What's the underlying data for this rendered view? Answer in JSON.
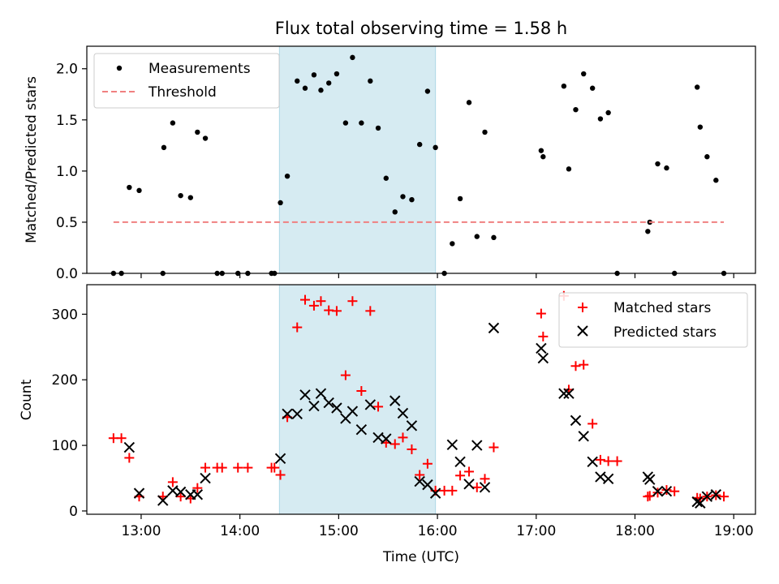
{
  "title": "Flux total observing time = 1.58 h",
  "chart_data": [
    {
      "type": "scatter",
      "ylabel": "Matched/Predicted stars",
      "xlim": [
        12.45,
        19.22
      ],
      "ylim": [
        0,
        2.22
      ],
      "yticks": [
        "0.0",
        "0.5",
        "1.0",
        "1.5",
        "2.0"
      ],
      "ytick_values": [
        0,
        0.5,
        1.0,
        1.5,
        2.0
      ],
      "grid": false,
      "legend": {
        "placement": "top-left",
        "entries": [
          "Measurements",
          "Threshold"
        ]
      },
      "colors": {
        "measurements": "#000000",
        "threshold": "#f08080",
        "highlight": "#add8e6"
      },
      "highlight_span": [
        14.4,
        15.98
      ],
      "series": [
        {
          "name": "Measurements",
          "marker": "dot",
          "points": [
            [
              12.72,
              0
            ],
            [
              12.8,
              0
            ],
            [
              12.88,
              0.84
            ],
            [
              12.98,
              0.81
            ],
            [
              13.22,
              0
            ],
            [
              13.23,
              1.23
            ],
            [
              13.32,
              1.47
            ],
            [
              13.4,
              0.76
            ],
            [
              13.5,
              0.74
            ],
            [
              13.57,
              1.38
            ],
            [
              13.65,
              1.32
            ],
            [
              13.77,
              0
            ],
            [
              13.82,
              0
            ],
            [
              13.98,
              0
            ],
            [
              14.08,
              0
            ],
            [
              14.32,
              0
            ],
            [
              14.35,
              0
            ],
            [
              14.41,
              0.69
            ],
            [
              14.48,
              0.95
            ],
            [
              14.58,
              1.88
            ],
            [
              14.66,
              1.81
            ],
            [
              14.75,
              1.94
            ],
            [
              14.82,
              1.79
            ],
            [
              14.9,
              1.86
            ],
            [
              14.98,
              1.95
            ],
            [
              15.07,
              1.47
            ],
            [
              15.14,
              2.11
            ],
            [
              15.23,
              1.47
            ],
            [
              15.32,
              1.88
            ],
            [
              15.4,
              1.42
            ],
            [
              15.48,
              0.93
            ],
            [
              15.57,
              0.6
            ],
            [
              15.65,
              0.75
            ],
            [
              15.74,
              0.72
            ],
            [
              15.82,
              1.26
            ],
            [
              15.9,
              1.78
            ],
            [
              15.98,
              1.23
            ],
            [
              16.07,
              0
            ],
            [
              16.15,
              0.29
            ],
            [
              16.23,
              0.73
            ],
            [
              16.32,
              1.67
            ],
            [
              16.4,
              0.36
            ],
            [
              16.48,
              1.38
            ],
            [
              16.57,
              0.35
            ],
            [
              17.05,
              1.2
            ],
            [
              17.07,
              1.14
            ],
            [
              17.28,
              1.83
            ],
            [
              17.33,
              1.02
            ],
            [
              17.4,
              1.6
            ],
            [
              17.48,
              1.95
            ],
            [
              17.57,
              1.81
            ],
            [
              17.65,
              1.51
            ],
            [
              17.73,
              1.57
            ],
            [
              17.82,
              0
            ],
            [
              18.13,
              0.41
            ],
            [
              18.15,
              0.5
            ],
            [
              18.23,
              1.07
            ],
            [
              18.32,
              1.03
            ],
            [
              18.4,
              0
            ],
            [
              18.63,
              1.82
            ],
            [
              18.66,
              1.43
            ],
            [
              18.73,
              1.14
            ],
            [
              18.82,
              0.91
            ],
            [
              18.9,
              0
            ]
          ]
        },
        {
          "name": "Threshold",
          "style": "dashed",
          "x": [
            12.72,
            18.9
          ],
          "y": [
            0.5,
            0.5
          ]
        }
      ]
    },
    {
      "type": "scatter",
      "xlabel": "Time (UTC)",
      "ylabel": "Count",
      "xlim": [
        12.45,
        19.22
      ],
      "ylim": [
        -5,
        345
      ],
      "xticks": [
        "13:00",
        "14:00",
        "15:00",
        "16:00",
        "17:00",
        "18:00",
        "19:00"
      ],
      "xtick_values": [
        13,
        14,
        15,
        16,
        17,
        18,
        19
      ],
      "yticks": [
        "0",
        "100",
        "200",
        "300"
      ],
      "ytick_values": [
        0,
        100,
        200,
        300
      ],
      "grid": false,
      "legend": {
        "placement": "top-right",
        "entries": [
          "Matched stars",
          "Predicted stars"
        ]
      },
      "colors": {
        "matched": "#ff0000",
        "predicted": "#000000",
        "highlight": "#add8e6"
      },
      "highlight_span": [
        14.4,
        15.98
      ],
      "series": [
        {
          "name": "Matched stars",
          "marker": "plus",
          "points": [
            [
              12.72,
              111
            ],
            [
              12.8,
              111
            ],
            [
              12.88,
              81
            ],
            [
              12.98,
              22
            ],
            [
              13.22,
              22
            ],
            [
              13.32,
              44
            ],
            [
              13.4,
              22
            ],
            [
              13.5,
              19
            ],
            [
              13.57,
              35
            ],
            [
              13.65,
              66
            ],
            [
              13.77,
              66
            ],
            [
              13.82,
              66
            ],
            [
              13.98,
              66
            ],
            [
              14.08,
              66
            ],
            [
              14.32,
              66
            ],
            [
              14.35,
              66
            ],
            [
              14.41,
              55
            ],
            [
              14.48,
              143
            ],
            [
              14.58,
              280
            ],
            [
              14.66,
              322
            ],
            [
              14.75,
              313
            ],
            [
              14.82,
              320
            ],
            [
              14.9,
              306
            ],
            [
              14.98,
              305
            ],
            [
              15.07,
              207
            ],
            [
              15.14,
              320
            ],
            [
              15.23,
              183
            ],
            [
              15.32,
              305
            ],
            [
              15.4,
              159
            ],
            [
              15.48,
              104
            ],
            [
              15.57,
              102
            ],
            [
              15.65,
              112
            ],
            [
              15.74,
              94
            ],
            [
              15.82,
              55
            ],
            [
              15.9,
              72
            ],
            [
              15.98,
              31
            ],
            [
              16.07,
              31
            ],
            [
              16.15,
              31
            ],
            [
              16.23,
              54
            ],
            [
              16.32,
              60
            ],
            [
              16.4,
              36
            ],
            [
              16.48,
              49
            ],
            [
              16.57,
              97
            ],
            [
              17.05,
              301
            ],
            [
              17.07,
              266
            ],
            [
              17.28,
              328
            ],
            [
              17.33,
              185
            ],
            [
              17.4,
              221
            ],
            [
              17.48,
              223
            ],
            [
              17.57,
              133
            ],
            [
              17.65,
              78
            ],
            [
              17.73,
              76
            ],
            [
              17.82,
              76
            ],
            [
              18.13,
              22
            ],
            [
              18.15,
              23
            ],
            [
              18.23,
              28
            ],
            [
              18.32,
              32
            ],
            [
              18.4,
              30
            ],
            [
              18.63,
              20
            ],
            [
              18.66,
              19
            ],
            [
              18.73,
              22
            ],
            [
              18.82,
              24
            ],
            [
              18.9,
              22
            ]
          ]
        },
        {
          "name": "Predicted stars",
          "marker": "x",
          "points": [
            [
              12.88,
              97
            ],
            [
              12.98,
              27
            ],
            [
              13.22,
              16
            ],
            [
              13.32,
              31
            ],
            [
              13.4,
              29
            ],
            [
              13.5,
              25
            ],
            [
              13.57,
              25
            ],
            [
              13.65,
              50
            ],
            [
              14.41,
              80
            ],
            [
              14.48,
              148
            ],
            [
              14.58,
              148
            ],
            [
              14.66,
              177
            ],
            [
              14.75,
              160
            ],
            [
              14.82,
              179
            ],
            [
              14.9,
              165
            ],
            [
              14.98,
              157
            ],
            [
              15.07,
              141
            ],
            [
              15.14,
              152
            ],
            [
              15.23,
              124
            ],
            [
              15.32,
              162
            ],
            [
              15.4,
              112
            ],
            [
              15.48,
              110
            ],
            [
              15.57,
              168
            ],
            [
              15.65,
              149
            ],
            [
              15.74,
              130
            ],
            [
              15.82,
              45
            ],
            [
              15.9,
              40
            ],
            [
              15.98,
              27
            ],
            [
              16.15,
              101
            ],
            [
              16.23,
              75
            ],
            [
              16.32,
              41
            ],
            [
              16.4,
              100
            ],
            [
              16.48,
              36
            ],
            [
              16.57,
              279
            ],
            [
              17.05,
              248
            ],
            [
              17.07,
              233
            ],
            [
              17.28,
              179
            ],
            [
              17.33,
              179
            ],
            [
              17.4,
              138
            ],
            [
              17.48,
              114
            ],
            [
              17.57,
              75
            ],
            [
              17.65,
              52
            ],
            [
              17.73,
              49
            ],
            [
              18.13,
              52
            ],
            [
              18.15,
              48
            ],
            [
              18.23,
              30
            ],
            [
              18.32,
              30
            ],
            [
              18.63,
              14
            ],
            [
              18.66,
              12
            ],
            [
              18.73,
              22
            ],
            [
              18.82,
              25
            ]
          ]
        }
      ]
    }
  ]
}
